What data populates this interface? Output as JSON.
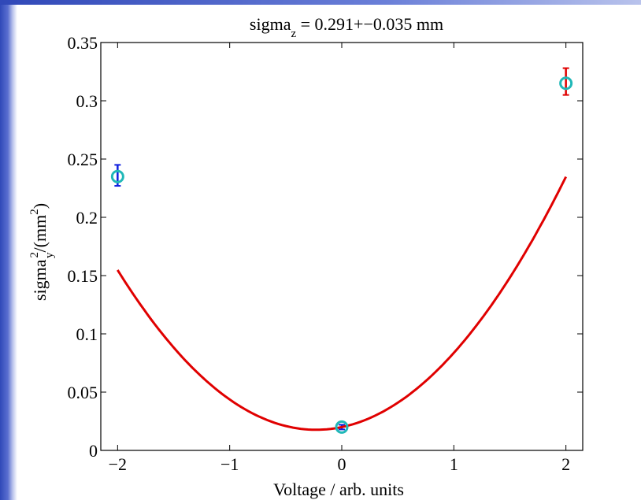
{
  "chart_data": {
    "type": "scatter",
    "title": {
      "base": "sigma",
      "sub": "z",
      "rest": " = 0.291+−0.035 mm"
    },
    "xlabel": "Voltage / arb. units",
    "ylabel": {
      "base": "sigma",
      "sup": "2",
      "sub": "y",
      "rest": "/(mm",
      "rest_sup": "2",
      "close": ")"
    },
    "xlim": [
      -2.15,
      2.15
    ],
    "ylim": [
      0,
      0.35
    ],
    "x_ticks": [
      -2,
      -1,
      0,
      1,
      2
    ],
    "x_tick_labels": [
      "−2",
      "−1",
      "0",
      "1",
      "2"
    ],
    "y_ticks": [
      0,
      0.05,
      0.1,
      0.15,
      0.2,
      0.25,
      0.3,
      0.35
    ],
    "y_tick_labels": [
      "0",
      "0.05",
      "0.1",
      "0.15",
      "0.2",
      "0.25",
      "0.3",
      "0.35"
    ],
    "grid": false,
    "series": [
      {
        "type": "scatter",
        "marker": "circle",
        "color": "#20b8b8",
        "x": [
          -2,
          0,
          2
        ],
        "y": [
          0.235,
          0.02,
          0.315
        ],
        "error_low": [
          0.008,
          0.002,
          0.01
        ],
        "error_high": [
          0.01,
          0.002,
          0.013
        ],
        "error_colors": [
          "#1020e0",
          "#1020e0",
          "#e00000"
        ]
      },
      {
        "type": "line",
        "color": "#e00000",
        "fit": "quadratic",
        "coefficients": [
          0.02,
          0.02,
          0.0437
        ],
        "x_range": [
          -2,
          2
        ]
      }
    ]
  }
}
